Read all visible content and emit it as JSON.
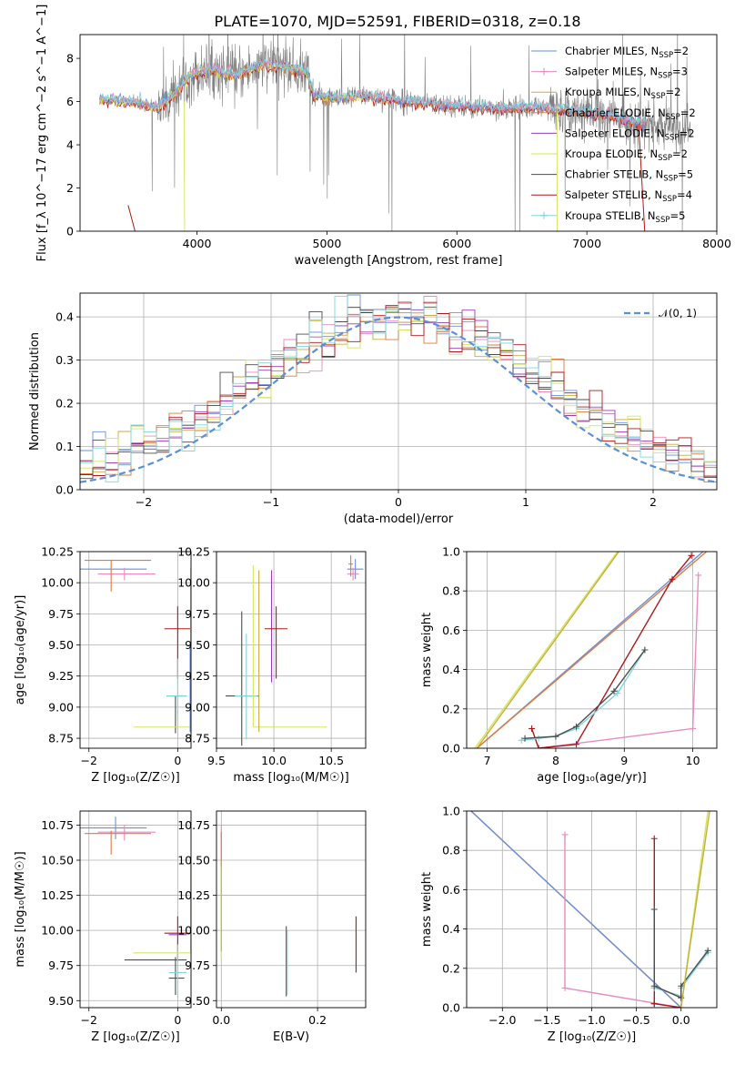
{
  "colors": {
    "chabrier_miles": "#6a8fdb",
    "salpeter_miles": "#e88bbf",
    "kroupa_miles": "#c8ad3e",
    "chabrier_elodie": "#e07b39",
    "salpeter_elodie": "#9a3fb5",
    "kroupa_elodie": "#d2e85b",
    "chabrier_stelib": "#4d4d4d",
    "salpeter_stelib": "#b01818",
    "kroupa_stelib": "#7fd6dc",
    "spectrum": "#808080",
    "normal": "#5b8fd8",
    "grid": "#b0b0b0"
  },
  "chart_data": [
    {
      "id": "spectrum",
      "type": "line",
      "title": "PLATE=1070, MJD=52591, FIBERID=0318, z=0.18",
      "xlabel": "wavelength [Angstrom, rest frame]",
      "ylabel": "Flux [f_λ 10^−17 erg cm^−2 s^−1 A^−1]",
      "xlim": [
        3100,
        8000
      ],
      "ylim": [
        0,
        9.1
      ],
      "xticks": [
        4000,
        5000,
        6000,
        7000,
        8000
      ],
      "yticks": [
        0,
        2,
        4,
        6,
        8
      ],
      "grid": false,
      "legend_position": "top-right",
      "legend": [
        {
          "name": "Chabrier MILES, N",
          "sub": "SSP",
          "suffix": "=2",
          "color_key": "chabrier_miles",
          "marker": "line"
        },
        {
          "name": "Salpeter MILES, N",
          "sub": "SSP",
          "suffix": "=3",
          "color_key": "salpeter_miles",
          "marker": "plus"
        },
        {
          "name": "Kroupa MILES, N",
          "sub": "SSP",
          "suffix": "=2",
          "color_key": "kroupa_miles",
          "marker": "line"
        },
        {
          "name": "Chabrier ELODIE, N",
          "sub": "SSP",
          "suffix": "=2",
          "color_key": "chabrier_elodie",
          "marker": "line"
        },
        {
          "name": "Salpeter ELODIE, N",
          "sub": "SSP",
          "suffix": "=2",
          "color_key": "salpeter_elodie",
          "marker": "line"
        },
        {
          "name": "Kroupa ELODIE, N",
          "sub": "SSP",
          "suffix": "=2",
          "color_key": "kroupa_elodie",
          "marker": "line"
        },
        {
          "name": "Chabrier STELIB, N",
          "sub": "SSP",
          "suffix": "=5",
          "color_key": "chabrier_stelib",
          "marker": "line"
        },
        {
          "name": "Salpeter STELIB, N",
          "sub": "SSP",
          "suffix": "=4",
          "color_key": "salpeter_stelib",
          "marker": "line"
        },
        {
          "name": "Kroupa STELIB, N",
          "sub": "SSP",
          "suffix": "=5",
          "color_key": "kroupa_stelib",
          "marker": "plus"
        }
      ],
      "continuum": [
        [
          3250,
          6.1
        ],
        [
          3500,
          6.0
        ],
        [
          3700,
          5.7
        ],
        [
          3800,
          6.2
        ],
        [
          3950,
          7.2
        ],
        [
          4100,
          7.5
        ],
        [
          4300,
          7.2
        ],
        [
          4500,
          7.7
        ],
        [
          4700,
          7.6
        ],
        [
          4850,
          7.3
        ],
        [
          4900,
          6.3
        ],
        [
          5100,
          6.1
        ],
        [
          5300,
          6.3
        ],
        [
          5500,
          6.1
        ],
        [
          5800,
          5.9
        ],
        [
          6000,
          5.8
        ],
        [
          6300,
          5.7
        ],
        [
          6600,
          5.75
        ],
        [
          6900,
          5.6
        ],
        [
          7200,
          5.3
        ],
        [
          7400,
          5.0
        ],
        [
          7600,
          4.8
        ],
        [
          7750,
          4.7
        ]
      ],
      "spectrum_x_range": [
        3250,
        7800
      ],
      "models_x_range": [
        3250,
        7450
      ],
      "kroupa_miles_x_range": [
        3250,
        5400
      ]
    },
    {
      "id": "residuals",
      "type": "histogram",
      "xlabel": "(data-model)/error",
      "ylabel": "Normed distribution",
      "xlim": [
        -2.5,
        2.5
      ],
      "ylim": [
        0,
        0.455
      ],
      "xticks": [
        -2,
        -1,
        0,
        1,
        2
      ],
      "yticks": [
        0.0,
        0.1,
        0.2,
        0.3,
        0.4
      ],
      "grid": true,
      "bin_width": 0.1,
      "legend_position": "top-right",
      "legend": [
        {
          "name": "𝒩(0, 1)",
          "color_key": "normal"
        }
      ],
      "normal": {
        "mu": 0,
        "sigma": 1
      }
    },
    {
      "id": "age_vs_Z",
      "type": "errorbar",
      "xlabel": "Z [log₁₀(Z/Z☉)]",
      "ylabel": "age  [log₁₀(age/yr)]",
      "xlim": [
        -2.2,
        0.3
      ],
      "ylim": [
        8.67,
        10.25
      ],
      "xticks": [
        -2,
        0
      ],
      "yticks": [
        8.75,
        9.0,
        9.25,
        9.5,
        9.75,
        10.0,
        10.25
      ],
      "grid": true,
      "points": [
        {
          "c": "chabrier_miles",
          "x": -1.4,
          "y": 10.11,
          "xe": [
            0.8,
            0.7
          ],
          "ye": [
            0,
            0
          ]
        },
        {
          "c": "salpeter_miles",
          "x": -1.2,
          "y": 10.07,
          "xe": [
            0.6,
            0.7
          ],
          "ye": [
            0.05,
            0.05
          ]
        },
        {
          "c": "chabrier_elodie",
          "x": -1.5,
          "y": 10.18,
          "xe": [
            0.6,
            0.9
          ],
          "ye": [
            0.25,
            0
          ]
        },
        {
          "c": "salpeter_stelib",
          "x": 0.0,
          "y": 9.63,
          "xe": [
            0.3,
            0.3
          ],
          "ye": [
            0.4,
            0.18
          ]
        },
        {
          "c": "chabrier_stelib",
          "x": -0.05,
          "y": 9.09,
          "xe": [
            0.2,
            0.25
          ],
          "ye": [
            0.3,
            0
          ]
        },
        {
          "c": "kroupa_stelib",
          "x": 0.0,
          "y": 9.09,
          "xe": [
            0.25,
            0.2
          ],
          "ye": [
            0.2,
            0.3
          ]
        },
        {
          "c": "kroupa_elodie",
          "x": -0.3,
          "y": 8.84,
          "xe": [
            0.7,
            0.7
          ],
          "ye": [
            0,
            0
          ]
        },
        {
          "c": "kroupa_elodie",
          "x": 0.29,
          "y": 9.5,
          "xe": [
            0,
            0
          ],
          "ye": [
            0.7,
            0.62
          ]
        },
        {
          "c": "chabrier_miles",
          "x": 0.28,
          "y": 9.2,
          "xe": [
            0,
            0
          ],
          "ye": [
            0.4,
            0.3
          ]
        }
      ]
    },
    {
      "id": "age_vs_mass",
      "type": "errorbar",
      "xlabel": "mass [log₁₀(M/M☉)]",
      "ylabel": "",
      "xlim": [
        9.5,
        10.8
      ],
      "ylim": [
        8.67,
        10.25
      ],
      "xticks": [
        9.5,
        10.0,
        10.5
      ],
      "yticks": [
        8.75,
        9.0,
        9.25,
        9.5,
        9.75,
        10.0,
        10.25
      ],
      "grid": true,
      "points": [
        {
          "c": "chabrier_miles",
          "x": 10.71,
          "y": 10.11,
          "xe": [
            0.07,
            0.07
          ],
          "ye": [
            0.08,
            0.08
          ]
        },
        {
          "c": "salpeter_miles",
          "x": 10.69,
          "y": 10.07,
          "xe": [
            0.05,
            0.05
          ],
          "ye": [
            0.05,
            0.05
          ]
        },
        {
          "c": "chabrier_elodie",
          "x": 10.67,
          "y": 10.15,
          "xe": [
            0.02,
            0.02
          ],
          "ye": [
            0.1,
            0.07
          ]
        },
        {
          "c": "salpeter_elodie",
          "x": 9.98,
          "y": 9.6,
          "xe": [
            0,
            0
          ],
          "ye": [
            0.4,
            0.5
          ]
        },
        {
          "c": "salpeter_stelib",
          "x": 10.02,
          "y": 9.63,
          "xe": [
            0.1,
            0.1
          ],
          "ye": [
            0.4,
            0.18
          ]
        },
        {
          "c": "chabrier_stelib",
          "x": 9.72,
          "y": 9.09,
          "xe": [
            0.14,
            0.15
          ],
          "ye": [
            0.4,
            0.68
          ]
        },
        {
          "c": "kroupa_stelib",
          "x": 9.76,
          "y": 9.09,
          "xe": [
            0.1,
            0.1
          ],
          "ye": [
            0.35,
            0.5
          ]
        },
        {
          "c": "kroupa_elodie",
          "x": 9.82,
          "y": 8.84,
          "xe": [
            0,
            0.64
          ],
          "ye": [
            0,
            1.3
          ]
        },
        {
          "c": "kroupa_miles",
          "x": 9.87,
          "y": 9.5,
          "xe": [
            0,
            0
          ],
          "ye": [
            0.7,
            0.6
          ]
        }
      ]
    },
    {
      "id": "massweight_vs_age",
      "type": "line",
      "xlabel": "age  [log₁₀(age/yr)]",
      "ylabel": "mass weight",
      "xlim": [
        6.7,
        10.35
      ],
      "ylim": [
        0,
        1.0
      ],
      "xticks": [
        7,
        8,
        9,
        10
      ],
      "yticks": [
        0.0,
        0.2,
        0.4,
        0.6,
        0.8,
        1.0
      ],
      "grid": true,
      "series": [
        {
          "c": "chabrier_miles",
          "x": [
            6.85,
            10.15
          ],
          "y": [
            0.0,
            1.0
          ]
        },
        {
          "c": "chabrier_elodie",
          "x": [
            6.85,
            10.2
          ],
          "y": [
            0.0,
            1.0
          ]
        },
        {
          "c": "kroupa_elodie",
          "x": [
            6.82,
            8.9
          ],
          "y": [
            0.0,
            1.0
          ]
        },
        {
          "c": "kroupa_miles",
          "x": [
            6.85,
            8.92
          ],
          "y": [
            0.0,
            1.0
          ]
        },
        {
          "c": "salpeter_miles",
          "x": [
            7.75,
            10.0,
            10.08
          ],
          "y": [
            0.0,
            0.1,
            0.88
          ],
          "marker": "plus"
        },
        {
          "c": "salpeter_stelib",
          "x": [
            7.65,
            7.75,
            8.3,
            9.7,
            9.98
          ],
          "y": [
            0.1,
            0.0,
            0.02,
            0.86,
            0.98
          ],
          "marker": "plus"
        },
        {
          "c": "kroupa_stelib",
          "x": [
            7.5,
            7.75,
            8.0,
            8.3,
            8.9,
            9.3
          ],
          "y": [
            0.04,
            0.05,
            0.06,
            0.1,
            0.28,
            0.5
          ],
          "marker": "plus"
        },
        {
          "c": "chabrier_stelib",
          "x": [
            7.55,
            8.0,
            8.3,
            8.85,
            9.3
          ],
          "y": [
            0.05,
            0.06,
            0.11,
            0.29,
            0.5
          ],
          "marker": "plus"
        }
      ]
    },
    {
      "id": "mass_vs_Z",
      "type": "errorbar",
      "xlabel": "Z [log₁₀(Z/Z☉)]",
      "ylabel": "mass [log₁₀(M/M☉)]",
      "xlim": [
        -2.2,
        0.3
      ],
      "ylim": [
        9.45,
        10.85
      ],
      "xticks": [
        -2,
        0
      ],
      "yticks": [
        9.5,
        9.75,
        10.0,
        10.25,
        10.5,
        10.75
      ],
      "grid": true,
      "points": [
        {
          "c": "chabrier_miles",
          "x": -1.4,
          "y": 10.73,
          "xe": [
            0.8,
            0.7
          ],
          "ye": [
            0.08,
            0.08
          ]
        },
        {
          "c": "salpeter_miles",
          "x": -1.2,
          "y": 10.7,
          "xe": [
            0.6,
            0.7
          ],
          "ye": [
            0.06,
            0.05
          ]
        },
        {
          "c": "chabrier_elodie",
          "x": -1.5,
          "y": 10.69,
          "xe": [
            0.6,
            0.9
          ],
          "ye": [
            0.15,
            0.02
          ]
        },
        {
          "c": "salpeter_stelib",
          "x": 0.0,
          "y": 9.98,
          "xe": [
            0.3,
            0.3
          ],
          "ye": [
            0.2,
            0.12
          ]
        },
        {
          "c": "salpeter_elodie",
          "x": 0.0,
          "y": 9.97,
          "xe": [
            0.2,
            0.2
          ],
          "ye": [
            0,
            0
          ]
        },
        {
          "c": "chabrier_stelib",
          "x": -0.5,
          "y": 9.79,
          "xe": [
            0.7,
            0.7
          ],
          "ye": [
            0,
            0
          ]
        },
        {
          "c": "chabrier_stelib",
          "x": -0.05,
          "y": 9.66,
          "xe": [
            0.15,
            0.2
          ],
          "ye": [
            0.12,
            0.15
          ]
        },
        {
          "c": "kroupa_stelib",
          "x": 0.0,
          "y": 9.7,
          "xe": [
            0.2,
            0.2
          ],
          "ye": [
            0.18,
            0.2
          ]
        },
        {
          "c": "kroupa_elodie",
          "x": -0.3,
          "y": 9.84,
          "xe": [
            0.7,
            0.7
          ],
          "ye": [
            0,
            0
          ]
        },
        {
          "c": "kroupa_elodie",
          "x": 0.29,
          "y": 10.15,
          "xe": [
            0,
            0
          ],
          "ye": [
            0.3,
            0.38
          ]
        }
      ]
    },
    {
      "id": "mass_vs_EBV",
      "type": "errorbar",
      "xlabel": "E(B-V)",
      "ylabel": "",
      "xlim": [
        -0.01,
        0.3
      ],
      "ylim": [
        9.45,
        10.85
      ],
      "xticks": [
        0.0,
        0.2
      ],
      "yticks": [
        9.5,
        9.75,
        10.0,
        10.25,
        10.5,
        10.75
      ],
      "grid": true,
      "points": [
        {
          "c": "salpeter_miles",
          "x": 0.0,
          "y": 10.6,
          "xe": [
            0,
            0
          ],
          "ye": [
            0.15,
            0.15
          ]
        },
        {
          "c": "chabrier_elodie",
          "x": 0.0,
          "y": 10.55,
          "xe": [
            0,
            0
          ],
          "ye": [
            0.1,
            0.15
          ]
        },
        {
          "c": "kroupa_elodie",
          "x": 0.0,
          "y": 10.15,
          "xe": [
            0,
            0
          ],
          "ye": [
            0.35,
            0.3
          ]
        },
        {
          "c": "kroupa_miles",
          "x": 0.0,
          "y": 10.2,
          "xe": [
            0,
            0
          ],
          "ye": [
            0.35,
            0.3
          ]
        },
        {
          "c": "chabrier_stelib",
          "x": 0.135,
          "y": 9.78,
          "xe": [
            0,
            0
          ],
          "ye": [
            0.25,
            0.25
          ]
        },
        {
          "c": "kroupa_stelib",
          "x": 0.137,
          "y": 9.76,
          "xe": [
            0,
            0
          ],
          "ye": [
            0.22,
            0.24
          ]
        },
        {
          "c": "salpeter_stelib",
          "x": 0.28,
          "y": 9.9,
          "xe": [
            0,
            0
          ],
          "ye": [
            0.2,
            0.2
          ]
        }
      ]
    },
    {
      "id": "massweight_vs_Z",
      "type": "line",
      "xlabel": "Z [log₁₀(Z/Z☉)]",
      "ylabel": "mass weight",
      "xlim": [
        -2.4,
        0.4
      ],
      "ylim": [
        0,
        1.0
      ],
      "xticks": [
        -2.0,
        -1.5,
        -1.0,
        -0.5,
        0.0
      ],
      "yticks": [
        0.0,
        0.2,
        0.4,
        0.6,
        0.8,
        1.0
      ],
      "grid": true,
      "series": [
        {
          "c": "chabrier_elodie",
          "x": [
            -2.35,
            0.0
          ],
          "y": [
            1.0,
            0.0
          ]
        },
        {
          "c": "chabrier_miles",
          "x": [
            -2.35,
            0.0
          ],
          "y": [
            1.0,
            0.0
          ]
        },
        {
          "c": "salpeter_miles",
          "x": [
            -1.3,
            -1.3,
            0.0,
            0.0
          ],
          "y": [
            0.88,
            0.1,
            0.0,
            0.0
          ],
          "marker": "plus"
        },
        {
          "c": "salpeter_stelib",
          "x": [
            -0.3,
            -0.3,
            -0.3,
            -0.3,
            0.0
          ],
          "y": [
            0.86,
            0.1,
            0.02,
            0.02,
            0.0
          ],
          "marker": "plus"
        },
        {
          "c": "kroupa_stelib",
          "x": [
            -0.3,
            -0.3,
            0.0,
            0.0,
            0.3
          ],
          "y": [
            0.5,
            0.1,
            0.06,
            0.1,
            0.28
          ],
          "marker": "plus"
        },
        {
          "c": "chabrier_stelib",
          "x": [
            -0.3,
            -0.3,
            0.0,
            0.0,
            0.3
          ],
          "y": [
            0.5,
            0.11,
            0.05,
            0.11,
            0.29
          ],
          "marker": "plus"
        },
        {
          "c": "kroupa_elodie",
          "x": [
            0.0,
            0.3
          ],
          "y": [
            0.0,
            1.0
          ]
        },
        {
          "c": "kroupa_miles",
          "x": [
            0.0,
            0.32
          ],
          "y": [
            0.0,
            1.0
          ]
        }
      ]
    }
  ]
}
